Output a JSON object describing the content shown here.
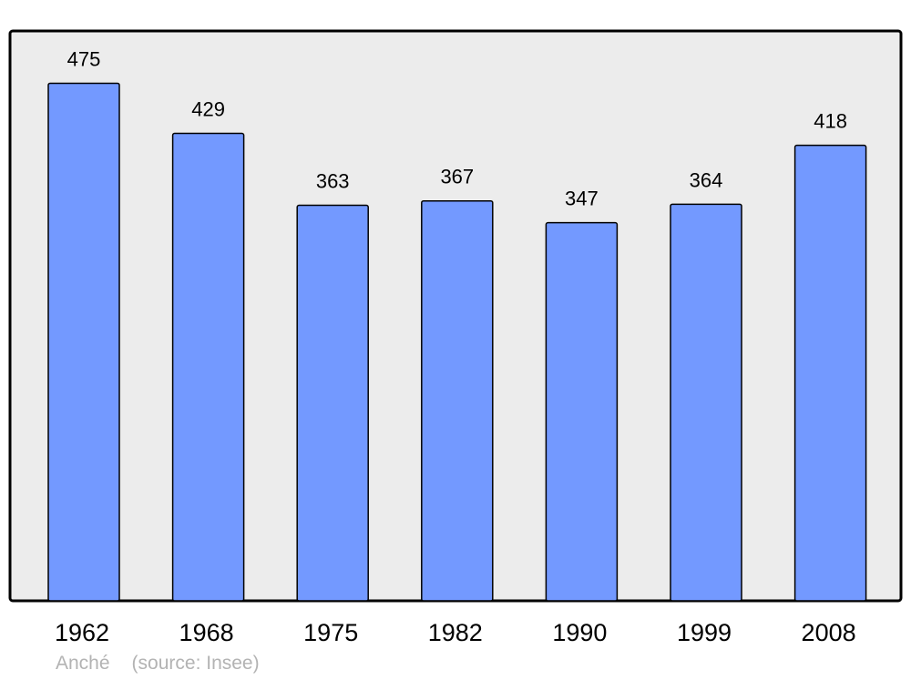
{
  "chart_data": {
    "type": "bar",
    "categories": [
      "1962",
      "1968",
      "1975",
      "1982",
      "1990",
      "1999",
      "2008"
    ],
    "values": [
      475,
      429,
      363,
      367,
      347,
      364,
      418
    ],
    "title": "",
    "xlabel": "",
    "ylabel": "",
    "ylim": [
      0,
      523
    ],
    "grid": false,
    "data_labels": true,
    "colors": {
      "bar": "#7399ff",
      "background": "#ececec",
      "border": "#000000"
    }
  },
  "footer": {
    "commune": "Anché",
    "source": "(source: Insee)"
  }
}
